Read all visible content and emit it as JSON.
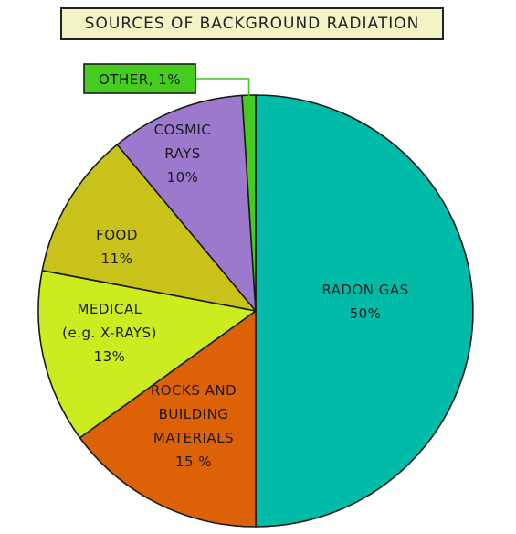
{
  "chart_data": {
    "type": "pie",
    "title": "SOURCES OF BACKGROUND RADIATION",
    "slices": [
      {
        "label_lines": [
          "RADON GAS",
          "50%"
        ],
        "value": 50,
        "color": "#00bba8"
      },
      {
        "label_lines": [
          "ROCKS AND",
          "BUILDING",
          "MATERIALS",
          "15 %"
        ],
        "value": 15,
        "color": "#dd6207"
      },
      {
        "label_lines": [
          "MEDICAL",
          "(e.g. X-RAYS)",
          "13%"
        ],
        "value": 13,
        "color": "#ccec1f"
      },
      {
        "label_lines": [
          "FOOD",
          "11%"
        ],
        "value": 11,
        "color": "#c8c21a"
      },
      {
        "label_lines": [
          "COSMIC",
          "RAYS",
          "10%"
        ],
        "value": 10,
        "color": "#9c79cc"
      },
      {
        "label_lines": [
          "OTHER, 1%"
        ],
        "value": 1,
        "color": "#46cc1f",
        "callout": true
      }
    ]
  }
}
